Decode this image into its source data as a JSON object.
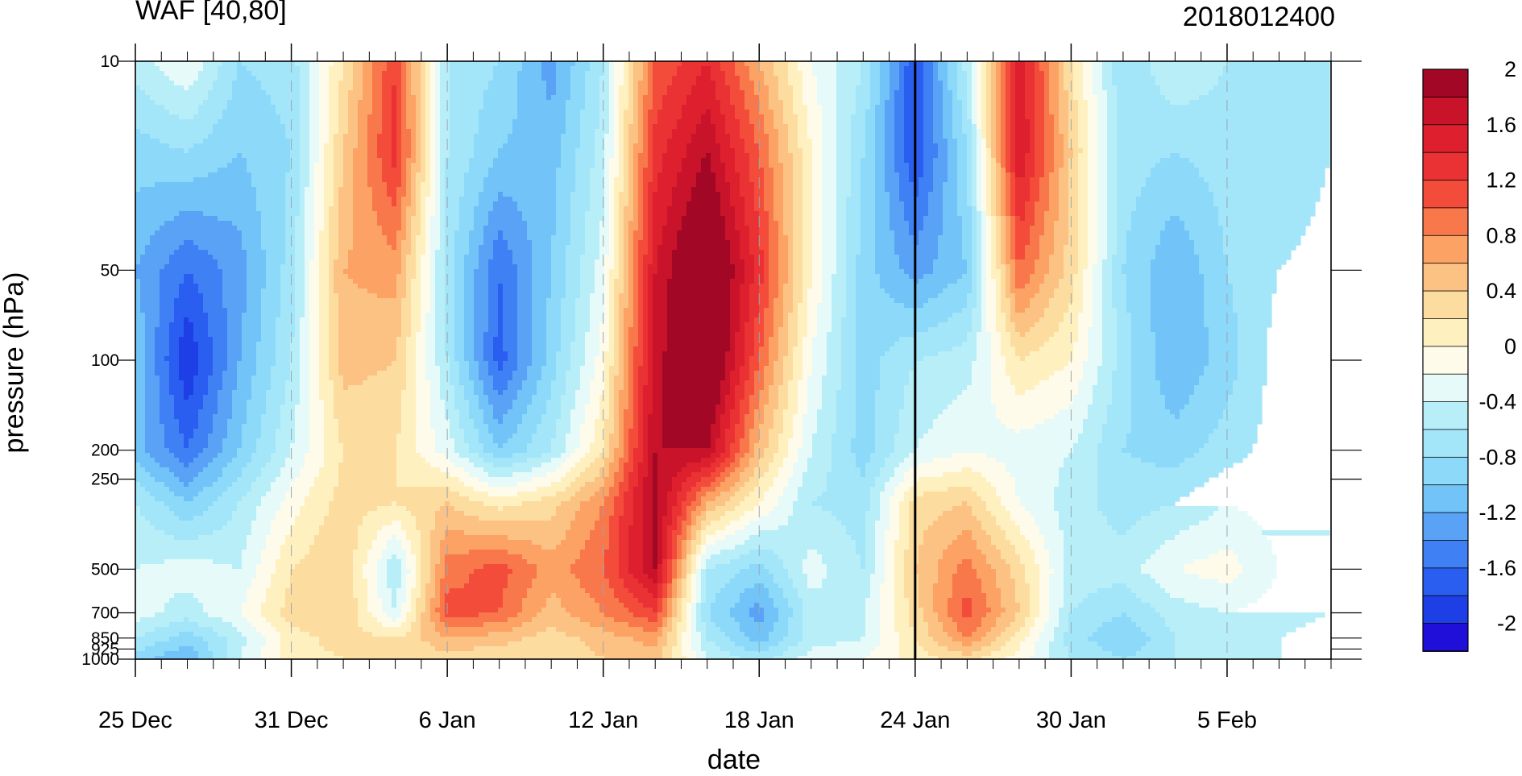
{
  "chart_data": {
    "type": "heatmap",
    "title": "WAF [40,80]",
    "subtitle": "2018012400",
    "xlabel": "date",
    "ylabel": "pressure (hPa)",
    "x_ticks": [
      "25 Dec",
      "31 Dec",
      "6 Jan",
      "12 Jan",
      "18 Jan",
      "24 Jan",
      "30 Jan",
      "5 Feb"
    ],
    "x_range": [
      "2017-12-25",
      "2018-02-09"
    ],
    "marker_date": "24 Jan",
    "y_ticks": [
      "10",
      "50",
      "100",
      "200",
      "250",
      "500",
      "700",
      "850",
      "925",
      "1000"
    ],
    "y_scale": "log",
    "y_range": [
      1000,
      10
    ],
    "dates": [
      "25 Dec",
      "27 Dec",
      "29 Dec",
      "31 Dec",
      "2 Jan",
      "4 Jan",
      "6 Jan",
      "8 Jan",
      "10 Jan",
      "12 Jan",
      "14 Jan",
      "16 Jan",
      "18 Jan",
      "20 Jan",
      "22 Jan",
      "24 Jan",
      "26 Jan",
      "28 Jan",
      "30 Jan",
      "1 Feb",
      "3 Feb",
      "5 Feb",
      "7 Feb",
      "9 Feb"
    ],
    "levels": [
      10,
      20,
      50,
      100,
      200,
      300,
      500,
      700,
      850,
      1000
    ],
    "values": [
      [
        -0.5,
        -0.2,
        -0.8,
        -0.7,
        0.2,
        1.2,
        -0.6,
        -0.8,
        -1.3,
        -0.6,
        1.0,
        1.4,
        0.6,
        -0.2,
        -0.6,
        -1.8,
        -0.5,
        1.6,
        0.2,
        -0.8,
        -0.4,
        -0.6,
        -0.7,
        -0.6
      ],
      [
        -0.9,
        -0.8,
        -1.0,
        -0.8,
        0.4,
        1.3,
        -0.6,
        -1.0,
        -1.1,
        -0.5,
        1.3,
        1.8,
        1.0,
        0.0,
        -0.8,
        -1.8,
        -0.8,
        1.6,
        0.4,
        -0.7,
        -0.8,
        -0.7,
        -0.8,
        -0.6
      ],
      [
        -1.2,
        -1.6,
        -1.3,
        -0.7,
        0.6,
        0.7,
        -0.7,
        -1.6,
        -1.0,
        -0.3,
        1.6,
        2.3,
        1.3,
        0.0,
        -0.9,
        -1.3,
        -1.0,
        1.0,
        0.3,
        -0.8,
        -1.2,
        -0.8,
        -0.6,
        -0.5
      ],
      [
        -1.0,
        -2.0,
        -1.2,
        -0.6,
        0.5,
        0.4,
        -0.6,
        -1.7,
        -0.9,
        -0.1,
        1.7,
        2.3,
        1.0,
        -0.2,
        -0.9,
        -0.6,
        -0.5,
        0.2,
        0.0,
        -0.7,
        -1.2,
        -0.9,
        -0.5,
        -0.4
      ],
      [
        -1.1,
        -1.6,
        -1.0,
        -0.4,
        0.2,
        0.2,
        -0.3,
        -1.0,
        -0.6,
        0.2,
        1.8,
        1.8,
        0.5,
        -0.4,
        -0.9,
        -0.4,
        -0.2,
        -0.3,
        -0.4,
        -0.8,
        -0.9,
        -0.7,
        -0.5,
        -0.5
      ],
      [
        -0.6,
        -1.0,
        -0.6,
        -0.1,
        0.3,
        0.2,
        0.4,
        0.1,
        0.3,
        0.8,
        1.9,
        0.6,
        0.0,
        -0.6,
        -0.7,
        0.3,
        0.4,
        -0.2,
        -0.5,
        -0.7,
        -0.6,
        -0.4,
        -0.5,
        -0.6
      ],
      [
        -0.4,
        -0.3,
        -0.4,
        0.2,
        0.4,
        -0.6,
        0.9,
        1.1,
        0.7,
        1.0,
        1.8,
        -0.6,
        -0.9,
        -0.3,
        -0.6,
        0.4,
        0.9,
        0.3,
        -0.5,
        -0.5,
        -0.2,
        -0.1,
        -0.4,
        -0.6
      ],
      [
        -0.3,
        -0.5,
        -0.2,
        0.3,
        0.4,
        -0.4,
        1.1,
        1.0,
        0.5,
        0.8,
        1.2,
        -0.8,
        -1.3,
        -0.5,
        -0.4,
        0.3,
        1.1,
        0.4,
        -0.6,
        -0.8,
        -0.5,
        -0.4,
        -0.5,
        -0.6
      ],
      [
        -0.6,
        -0.9,
        -0.5,
        0.1,
        0.3,
        0.2,
        0.6,
        0.5,
        0.3,
        0.5,
        0.7,
        -0.6,
        -1.1,
        -0.5,
        -0.4,
        0.2,
        0.8,
        0.1,
        -0.7,
        -1.0,
        -0.6,
        -0.5,
        -0.6,
        -0.7
      ],
      [
        -0.9,
        -1.2,
        -0.4,
        0.1,
        0.2,
        0.2,
        0.3,
        0.2,
        0.2,
        0.4,
        0.5,
        -0.4,
        -0.7,
        -0.3,
        -0.2,
        0.1,
        0.3,
        -0.1,
        -0.6,
        -0.8,
        -0.6,
        -0.5,
        -0.6,
        -0.7
      ]
    ],
    "colorbar_levels": [
      -2.2,
      -2.0,
      -1.8,
      -1.6,
      -1.4,
      -1.2,
      -1.0,
      -0.8,
      -0.6,
      -0.4,
      -0.2,
      0,
      0.2,
      0.4,
      0.6,
      0.8,
      1.0,
      1.2,
      1.4,
      1.6,
      1.8,
      2.0,
      2.2
    ],
    "colorbar_tick_labels": [
      "-2",
      "-1.6",
      "-1.2",
      "-0.8",
      "-0.4",
      "0",
      "0.4",
      "0.8",
      "1.2",
      "1.6",
      "2"
    ],
    "colors": [
      "#1f0fd8",
      "#1e3ee6",
      "#2a5ef0",
      "#3f80f5",
      "#5aa2f6",
      "#72c4f8",
      "#8dd9f9",
      "#a3e5f9",
      "#b8eef8",
      "#e6faf9",
      "#fffbea",
      "#fff0c0",
      "#fddc9f",
      "#fcc283",
      "#fba264",
      "#f8774b",
      "#f44c3a",
      "#ea3134",
      "#de1f2d",
      "#c8132a",
      "#a30726"
    ]
  }
}
